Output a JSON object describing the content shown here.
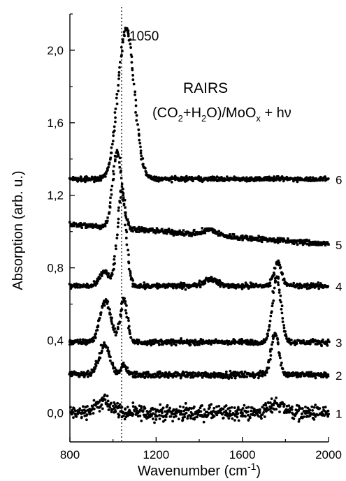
{
  "chart_data": {
    "type": "scatter",
    "title": "",
    "xlabel": {
      "base": "Wavenumber (cm",
      "sup": "-1",
      "tail": ")"
    },
    "ylabel": "Absorption (arb. u.)",
    "xlim": [
      800,
      2000
    ],
    "ylim": [
      -0.16,
      2.2
    ],
    "xticks": [
      800,
      1200,
      1600,
      2000
    ],
    "xtick_labels": [
      "800",
      "1200",
      "1600",
      "2000"
    ],
    "yticks": [
      0.0,
      0.4,
      0.8,
      1.2,
      1.6,
      2.0
    ],
    "ytick_labels": [
      "0,0",
      "0,4",
      "0,8",
      "1,2",
      "1,6",
      "2,0"
    ],
    "grid": false,
    "reference_line": {
      "x": 1040,
      "style": "dotted"
    },
    "annotations": {
      "peak_label": {
        "text": "1050",
        "x": 1050,
        "y": 2.1
      },
      "technique": "RAIRS",
      "system": {
        "parts": [
          {
            "t": "(CO",
            "s": "normal"
          },
          {
            "t": "2",
            "s": "sub"
          },
          {
            "t": "+H",
            "s": "normal"
          },
          {
            "t": "2",
            "s": "sub"
          },
          {
            "t": "O)/MoO",
            "s": "normal"
          },
          {
            "t": "x",
            "s": "sub"
          },
          {
            "t": " + hν",
            "s": "normal"
          }
        ]
      }
    },
    "series": [
      {
        "name": "1",
        "baseline": 0.0,
        "noise": 0.06,
        "marker": "circle",
        "peaks": [
          {
            "x": 960,
            "h": 0.06,
            "w": 40
          },
          {
            "x": 1760,
            "h": 0.05,
            "w": 35
          }
        ]
      },
      {
        "name": "2",
        "baseline": 0.21,
        "noise": 0.025,
        "marker": "circle",
        "peaks": [
          {
            "x": 960,
            "h": 0.16,
            "w": 25
          },
          {
            "x": 1050,
            "h": 0.05,
            "w": 15
          },
          {
            "x": 1752,
            "h": 0.23,
            "w": 18
          }
        ]
      },
      {
        "name": "3",
        "baseline": 0.39,
        "noise": 0.022,
        "marker": "circle",
        "peaks": [
          {
            "x": 965,
            "h": 0.23,
            "w": 25
          },
          {
            "x": 1050,
            "h": 0.24,
            "w": 16
          },
          {
            "x": 1760,
            "h": 0.36,
            "w": 20
          }
        ]
      },
      {
        "name": "4",
        "baseline": 0.7,
        "noise": 0.022,
        "marker": "circle",
        "peaks": [
          {
            "x": 960,
            "h": 0.08,
            "w": 20
          },
          {
            "x": 1040,
            "h": 0.52,
            "w": 20
          },
          {
            "x": 1450,
            "h": 0.04,
            "w": 30
          },
          {
            "x": 1765,
            "h": 0.13,
            "w": 18
          }
        ]
      },
      {
        "name": "5",
        "baseline_start": 1.04,
        "baseline_end": 0.93,
        "noise": 0.022,
        "marker": "square",
        "peaks": [
          {
            "x": 1020,
            "h": 0.42,
            "w": 22
          },
          {
            "x": 1450,
            "h": 0.03,
            "w": 30
          }
        ]
      },
      {
        "name": "6",
        "baseline": 1.29,
        "noise": 0.018,
        "marker": "circle",
        "peaks": [
          {
            "x": 1020,
            "h": 0.12,
            "w": 25
          },
          {
            "x": 1065,
            "h": 0.8,
            "w": 35
          }
        ]
      }
    ]
  }
}
